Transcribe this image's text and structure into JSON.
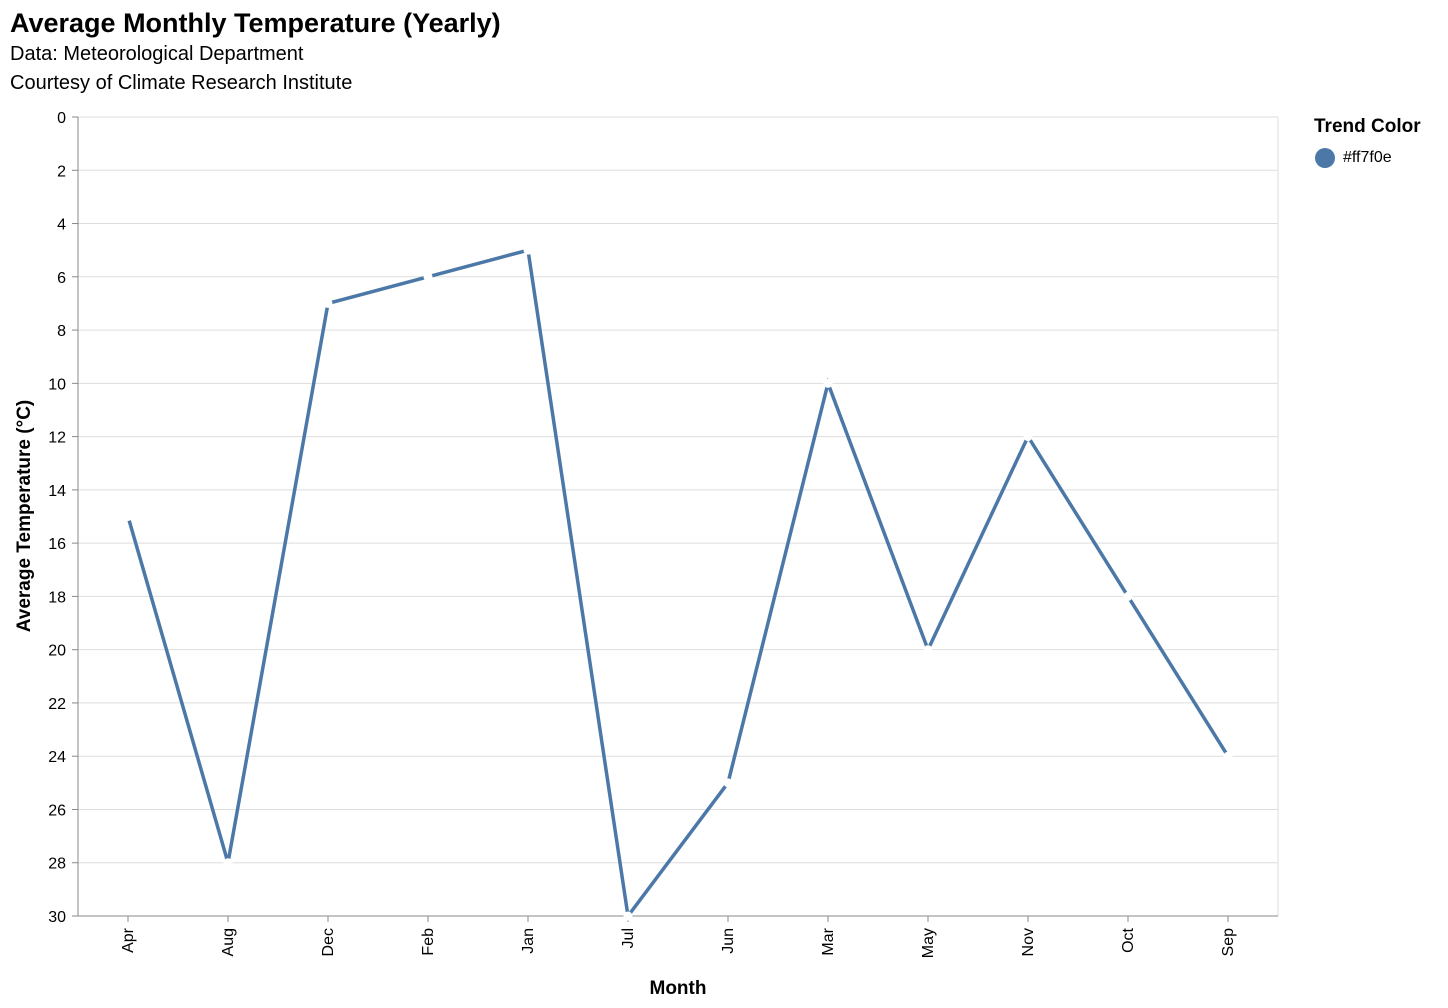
{
  "chart_data": {
    "type": "line",
    "title": "Average Monthly Temperature (Yearly)",
    "subtitle": [
      "Data: Meteorological Department",
      "Courtesy of Climate Research Institute"
    ],
    "xlabel": "Month",
    "ylabel": "Average Temperature (°C)",
    "categories": [
      "Apr",
      "Aug",
      "Dec",
      "Feb",
      "Jan",
      "Jul",
      "Jun",
      "Mar",
      "May",
      "Nov",
      "Oct",
      "Sep"
    ],
    "series": [
      {
        "name": "#ff7f0e",
        "values": [
          15,
          28,
          7,
          6,
          5,
          30,
          25,
          10,
          20,
          12,
          18,
          24
        ]
      }
    ],
    "yticks": [
      0,
      2,
      4,
      6,
      8,
      10,
      12,
      14,
      16,
      18,
      20,
      22,
      24,
      26,
      28,
      30
    ],
    "ylim": [
      0,
      30
    ],
    "y_reversed": true,
    "grid": true,
    "line_color": "#4c78a8",
    "legend": {
      "title": "Trend Color",
      "position": "right",
      "items": [
        "#ff7f0e"
      ]
    }
  }
}
